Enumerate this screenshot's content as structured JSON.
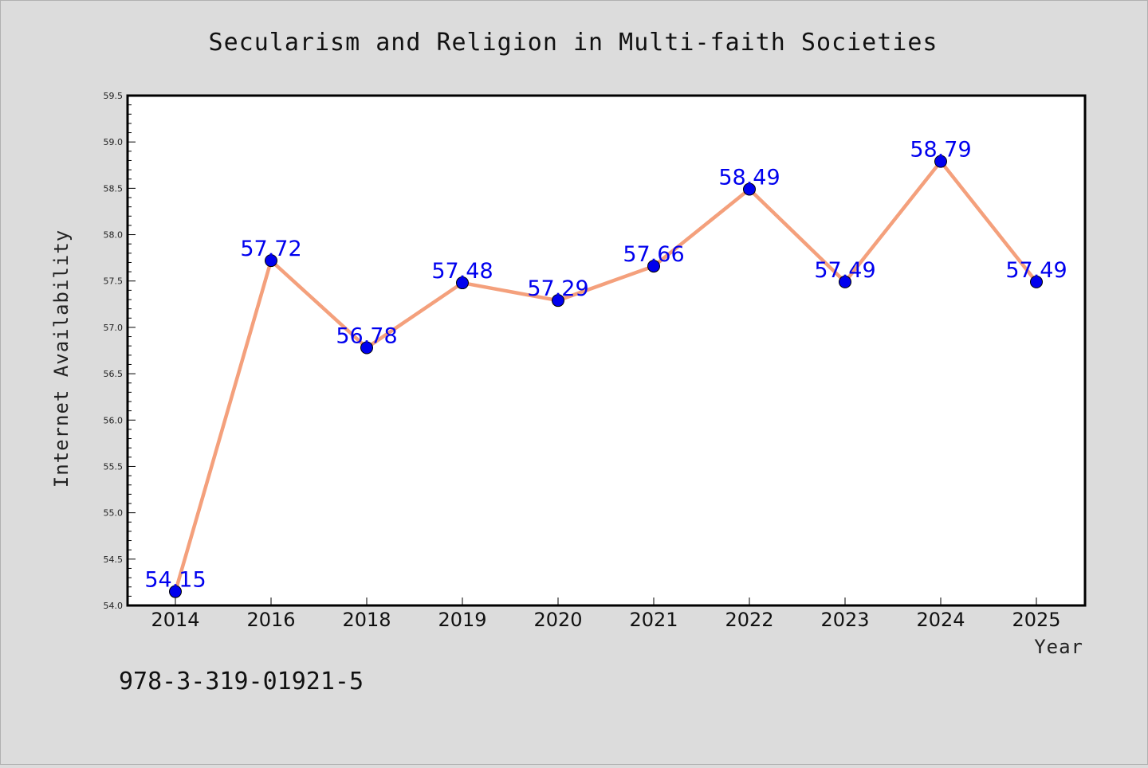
{
  "chart_data": {
    "type": "line",
    "title": "Secularism and Religion in Multi-faith Societies",
    "xlabel": "Year",
    "ylabel": "Internet Availability",
    "categories": [
      "2014",
      "2016",
      "2018",
      "2019",
      "2020",
      "2021",
      "2022",
      "2023",
      "2024",
      "2025"
    ],
    "series": [
      {
        "values": [
          54.15,
          57.72,
          56.78,
          57.48,
          57.29,
          57.66,
          58.49,
          57.49,
          58.79,
          57.49
        ],
        "labels": [
          "54.15",
          "57.72",
          "56.78",
          "57.48",
          "57.29",
          "57.66",
          "58.49",
          "57.49",
          "58.79",
          "57.49"
        ]
      }
    ],
    "ylim": [
      54.0,
      59.5
    ],
    "yticks": [
      "54.0",
      "54.5",
      "55.0",
      "55.5",
      "56.0",
      "56.5",
      "57.0",
      "57.5",
      "58.0",
      "58.5",
      "59.0",
      "59.5"
    ],
    "grid": false,
    "line_color": "#f4a07c",
    "marker_color": "#0000ee",
    "label_color": "#0000ee"
  },
  "annotation": "978-3-319-01921-5"
}
